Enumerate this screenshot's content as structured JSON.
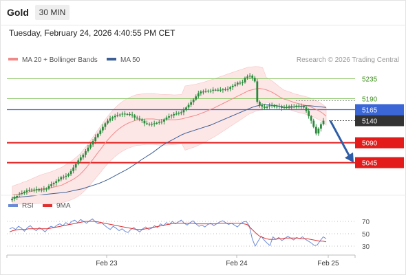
{
  "header": {
    "title": "Gold",
    "timeframe": "30 MIN"
  },
  "timestamp": "Tuesday, February 24, 2026 4:40:55 PM CET",
  "legend": {
    "ma20_bb": "MA 20 + Bollinger Bands",
    "ma50": "MA 50",
    "credit": "Research © 2026 Trading Central",
    "rsi": "RSI",
    "rsi_ma": "9MA"
  },
  "colors": {
    "candle": "#2a8a3c",
    "bollinger_fill": "#fde2e2",
    "ma20": "#f08a8a",
    "ma50": "#3d5f95",
    "resistance": "#8fc96b",
    "pivot": "#3a66d6",
    "support": "#e31b1b",
    "current": "#333333",
    "arrow": "#2e5ea8",
    "rsi_line": "#6a8ad6",
    "rsi_ma_line": "#e03030"
  },
  "chart_data": {
    "type": "candlestick",
    "instrument": "Gold",
    "timeframe": "30 MIN",
    "x_tick_labels": [
      "Feb 23",
      "Feb 24",
      "Feb 25"
    ],
    "y_axis_labels": [
      "5235",
      "5190",
      "5165",
      "5140",
      "5090",
      "5045"
    ],
    "levels": [
      {
        "value": 5235,
        "label": "5235",
        "kind": "resistance"
      },
      {
        "value": 5190,
        "label": "5190",
        "kind": "resistance"
      },
      {
        "value": 5165,
        "label": "5165",
        "kind": "pivot"
      },
      {
        "value": 5140,
        "label": "5140",
        "kind": "current"
      },
      {
        "value": 5090,
        "label": "5090",
        "kind": "support"
      },
      {
        "value": 5045,
        "label": "5045",
        "kind": "support"
      }
    ],
    "forecast_arrow": {
      "from_value": 5140,
      "to_value": 5045
    },
    "price_series": [
      4960,
      4963,
      4967,
      4970,
      4974,
      4976,
      4979,
      4982,
      4983,
      4984,
      4983,
      4985,
      4982,
      4984,
      4986,
      4986,
      4992,
      4996,
      4999,
      5003,
      5007,
      5012,
      5013,
      5015,
      5019,
      5026,
      5034,
      5042,
      5050,
      5057,
      5063,
      5071,
      5079,
      5086,
      5094,
      5103,
      5110,
      5118,
      5126,
      5134,
      5140,
      5145,
      5148,
      5151,
      5153,
      5154,
      5156,
      5155,
      5155,
      5154,
      5152,
      5147,
      5145,
      5143,
      5140,
      5134,
      5133,
      5132,
      5133,
      5134,
      5135,
      5137,
      5138,
      5143,
      5147,
      5150,
      5152,
      5155,
      5156,
      5158,
      5159,
      5164,
      5170,
      5176,
      5182,
      5188,
      5195,
      5202,
      5206,
      5206,
      5207,
      5208,
      5208,
      5210,
      5210,
      5210,
      5210,
      5211,
      5210,
      5212,
      5216,
      5219,
      5222,
      5226,
      5226,
      5227,
      5237,
      5240,
      5242,
      5237,
      5229,
      5183,
      5175,
      5172,
      5169,
      5172,
      5175,
      5175,
      5171,
      5172,
      5173,
      5169,
      5171,
      5171,
      5173,
      5172,
      5171,
      5174,
      5173,
      5173,
      5170,
      5162,
      5150,
      5140,
      5126,
      5111,
      5122,
      5132,
      5140
    ],
    "ma20_series": [
      4972,
      4973,
      4974,
      4976,
      4977,
      4979,
      4981,
      4983,
      4985,
      4986,
      4987,
      4988,
      4990,
      4992,
      4994,
      4998,
      5002,
      5006,
      5011,
      5017,
      5025,
      5034,
      5044,
      5054,
      5065,
      5075,
      5086,
      5096,
      5105,
      5113,
      5120,
      5126,
      5131,
      5135,
      5138,
      5141,
      5142,
      5143,
      5144,
      5144,
      5144,
      5143,
      5142,
      5142,
      5142,
      5142,
      5142,
      5143,
      5144,
      5146,
      5148,
      5150,
      5152,
      5155,
      5158,
      5161,
      5165,
      5168,
      5172,
      5176,
      5180,
      5184,
      5188,
      5192,
      5196,
      5200,
      5204,
      5208,
      5210,
      5212,
      5213,
      5212,
      5210,
      5207,
      5203,
      5198,
      5193,
      5189,
      5187,
      5184,
      5181,
      5179,
      5177,
      5175,
      5173,
      5170,
      5166,
      5162,
      5157,
      5150
    ],
    "ma50_series": [
      4965,
      4966,
      4967,
      4968,
      4969,
      4970,
      4971,
      4972,
      4973,
      4974,
      4975,
      4976,
      4977,
      4978,
      4980,
      4982,
      4984,
      4986,
      4989,
      4992,
      4995,
      4998,
      5002,
      5006,
      5011,
      5016,
      5021,
      5026,
      5031,
      5037,
      5043,
      5050,
      5056,
      5062,
      5068,
      5075,
      5082,
      5088,
      5093,
      5098,
      5103,
      5108,
      5112,
      5115,
      5118,
      5121,
      5124,
      5127,
      5130,
      5134,
      5138,
      5142,
      5146,
      5150,
      5154,
      5158,
      5162,
      5166,
      5170,
      5173,
      5175,
      5176,
      5176,
      5175,
      5174,
      5172,
      5170,
      5170,
      5171,
      5172,
      5173,
      5174,
      5174,
      5173,
      5172,
      5171,
      5170
    ],
    "rsi": {
      "levels": [
        70,
        50,
        30
      ],
      "rsi_series": [
        58,
        60,
        57,
        62,
        59,
        54,
        60,
        63,
        58,
        55,
        60,
        57,
        53,
        59,
        62,
        60,
        64,
        66,
        63,
        68,
        65,
        70,
        72,
        68,
        73,
        70,
        67,
        71,
        74,
        69,
        66,
        68,
        64,
        60,
        57,
        62,
        59,
        55,
        58,
        54,
        52,
        57,
        60,
        56,
        53,
        58,
        61,
        57,
        59,
        63,
        60,
        66,
        63,
        68,
        65,
        70,
        66,
        69,
        72,
        67,
        64,
        68,
        71,
        66,
        62,
        64,
        61,
        65,
        67,
        63,
        66,
        69,
        71,
        68,
        65,
        67,
        64,
        61,
        66,
        69,
        70,
        63,
        42,
        30,
        38,
        46,
        40,
        35,
        31,
        45,
        41,
        44,
        39,
        42,
        46,
        43,
        40,
        44,
        42,
        45,
        41,
        38,
        35,
        31,
        32,
        39,
        45,
        42
      ],
      "ma_series": [
        53,
        55,
        56,
        57,
        57,
        57,
        58,
        58,
        58,
        58,
        58,
        58,
        58,
        59,
        60,
        61,
        62,
        63,
        64,
        65,
        66,
        67,
        68,
        69,
        70,
        70,
        70,
        70,
        69,
        68,
        67,
        66,
        65,
        64,
        63,
        62,
        61,
        60,
        59,
        58,
        57,
        57,
        57,
        58,
        59,
        60,
        61,
        62,
        63,
        64,
        65,
        66,
        67,
        67,
        67,
        67,
        67,
        67,
        67,
        66,
        66,
        66,
        66,
        66,
        66,
        66,
        67,
        67,
        67,
        67,
        67,
        67,
        67,
        67,
        66,
        65,
        60,
        55,
        50,
        46,
        44,
        42,
        41,
        41,
        41,
        42,
        42,
        43,
        43,
        43,
        43,
        43,
        42,
        42,
        42,
        41,
        40,
        39,
        38,
        38,
        37
      ]
    }
  }
}
